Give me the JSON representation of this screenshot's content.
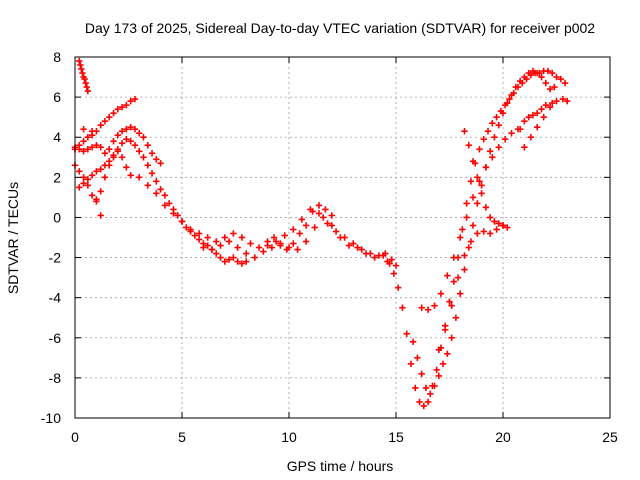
{
  "chart_data": {
    "type": "scatter",
    "title": "Day 173 of 2025, Sidereal Day-to-day VTEC variation (SDTVAR) for receiver p002",
    "xlabel": "GPS time / hours",
    "ylabel": "SDTVAR / TECUs",
    "xlim": [
      0,
      25
    ],
    "ylim": [
      -10,
      8
    ],
    "xticks": [
      0,
      5,
      10,
      15,
      20,
      25
    ],
    "yticks": [
      -10,
      -8,
      -6,
      -4,
      -2,
      0,
      2,
      4,
      6,
      8
    ],
    "grid": true,
    "marker": "+",
    "color": "#ff0000",
    "series": [
      {
        "x": [
          0.2,
          0.25,
          0.3,
          0.35,
          0.4,
          0.45,
          0.5,
          0.55,
          0.6
        ],
        "y": [
          7.8,
          7.6,
          7.4,
          7.2,
          7.0,
          6.9,
          6.7,
          6.5,
          6.3
        ]
      },
      {
        "x": [
          0.0,
          0.2,
          0.4,
          0.6,
          0.8,
          1.0,
          1.2,
          1.4,
          1.6,
          1.8,
          2.0,
          2.2,
          2.4,
          2.6,
          2.8
        ],
        "y": [
          3.4,
          3.6,
          3.8,
          4.0,
          4.1,
          4.3,
          4.6,
          4.8,
          5.0,
          5.2,
          5.4,
          5.5,
          5.6,
          5.8,
          5.9
        ]
      },
      {
        "x": [
          0.0,
          0.2,
          0.4,
          0.6,
          0.8,
          1.0,
          1.2,
          1.4,
          1.6,
          1.8,
          2.0,
          2.2,
          2.4,
          2.6,
          2.8,
          3.0,
          3.2,
          3.4,
          3.6,
          3.8,
          4.0
        ],
        "y": [
          3.5,
          3.4,
          3.3,
          3.4,
          3.5,
          3.6,
          3.5,
          3.2,
          3.4,
          3.8,
          4.1,
          4.3,
          4.4,
          4.5,
          4.4,
          4.2,
          4.0,
          3.6,
          3.2,
          2.9,
          2.7
        ]
      },
      {
        "x": [
          0.0,
          0.2,
          0.4,
          0.6,
          0.8,
          1.0,
          1.2,
          1.4,
          1.6,
          1.8,
          2.0,
          2.2,
          2.4,
          2.6
        ],
        "y": [
          2.6,
          2.3,
          2.0,
          1.6,
          1.1,
          0.9,
          1.3,
          2.0,
          2.6,
          3.0,
          3.3,
          3.0,
          2.5,
          2.1
        ]
      },
      {
        "x": [
          0.2,
          0.4,
          0.6,
          0.8,
          1.0,
          1.2,
          1.4,
          1.6,
          1.8,
          2.0,
          2.2,
          2.4,
          2.6,
          2.8,
          3.0,
          3.2,
          3.4,
          3.6,
          3.8,
          4.0,
          4.2,
          4.4,
          4.6,
          4.8,
          5.0,
          5.2,
          5.4,
          5.6,
          5.8,
          6.0,
          6.2,
          6.4,
          6.6,
          6.8,
          7.0,
          7.2,
          7.4,
          7.6,
          7.8,
          8.0
        ],
        "y": [
          1.5,
          1.7,
          1.9,
          2.1,
          2.3,
          2.4,
          2.6,
          2.8,
          3.1,
          3.4,
          3.7,
          3.9,
          3.8,
          3.6,
          3.3,
          3.0,
          2.6,
          2.2,
          1.8,
          1.4,
          1.1,
          0.7,
          0.4,
          0.1,
          -0.2,
          -0.5,
          -0.7,
          -0.9,
          -1.1,
          -1.3,
          -1.4,
          -1.6,
          -1.8,
          -2.0,
          -2.2,
          -2.1,
          -2.0,
          -2.2,
          -2.3,
          -2.2
        ]
      },
      {
        "x": [
          0.4,
          0.8,
          1.0,
          1.2
        ],
        "y": [
          4.4,
          4.3,
          0.8,
          0.1
        ]
      },
      {
        "x": [
          3.0,
          3.4,
          3.8,
          4.2,
          4.6,
          5.0,
          5.4,
          5.8,
          6.2,
          6.6,
          7.0,
          7.4,
          7.8,
          8.2,
          8.6,
          9.0,
          9.4,
          9.8,
          10.2,
          10.6,
          11.0,
          11.4,
          11.8,
          12.2,
          12.6,
          13.0,
          13.4,
          13.8,
          14.2,
          14.6,
          15.0
        ],
        "y": [
          2.0,
          1.6,
          1.2,
          0.6,
          0.2,
          -0.2,
          -0.6,
          -0.8,
          -1.0,
          -1.2,
          -1.0,
          -0.8,
          -1.0,
          -1.3,
          -1.5,
          -1.4,
          -1.2,
          -0.9,
          -0.6,
          -0.1,
          0.4,
          0.2,
          -0.3,
          -0.7,
          -1.0,
          -1.3,
          -1.6,
          -1.8,
          -1.9,
          -2.2,
          -2.4
        ]
      },
      {
        "x": [
          6.0,
          6.4,
          6.8,
          7.2,
          7.6,
          8.0,
          8.4,
          8.8,
          9.2,
          9.6,
          10.0,
          10.4,
          10.8,
          11.2,
          11.6,
          12.0,
          12.4,
          12.8,
          13.2,
          13.6,
          14.0,
          14.4,
          14.8
        ],
        "y": [
          -1.5,
          -1.6,
          -1.4,
          -1.2,
          -1.5,
          -1.8,
          -2.0,
          -1.7,
          -1.5,
          -1.3,
          -1.5,
          -1.6,
          -1.2,
          -0.5,
          0.0,
          -0.4,
          -1.0,
          -1.4,
          -1.5,
          -1.8,
          -2.0,
          -1.9,
          -2.1
        ]
      },
      {
        "x": [
          9.0,
          9.3,
          9.6,
          9.9,
          10.2,
          10.5,
          10.8,
          11.1,
          11.4,
          11.7,
          12.0
        ],
        "y": [
          -1.2,
          -1.0,
          -1.4,
          -1.6,
          -1.3,
          -0.8,
          -0.4,
          0.3,
          0.6,
          0.4,
          0.1
        ]
      },
      {
        "x": [
          14.5,
          14.7,
          14.9,
          15.1,
          15.3,
          15.5,
          15.7,
          15.9,
          16.1,
          16.3,
          16.5,
          16.7,
          16.9,
          17.1,
          17.3,
          17.5,
          17.7,
          17.9,
          18.1,
          18.3,
          18.5,
          18.7,
          18.9,
          19.1,
          19.3,
          19.5,
          19.7,
          19.9,
          20.1,
          20.3,
          20.5,
          20.7,
          20.9,
          21.1,
          21.3,
          21.5,
          21.7,
          21.9,
          22.1,
          22.3,
          22.5,
          22.7,
          22.9
        ],
        "y": [
          -1.8,
          -2.3,
          -2.8,
          -3.5,
          -4.5,
          -5.8,
          -7.3,
          -8.5,
          -9.2,
          -9.4,
          -9.2,
          -8.4,
          -7.6,
          -6.5,
          -5.4,
          -4.2,
          -3.2,
          -2.0,
          -0.6,
          0.7,
          1.8,
          2.7,
          3.4,
          3.9,
          4.3,
          4.7,
          5.0,
          5.3,
          5.6,
          5.9,
          6.2,
          6.5,
          6.7,
          6.9,
          7.1,
          7.2,
          7.2,
          7.3,
          7.3,
          7.2,
          7.0,
          6.9,
          6.7
        ]
      },
      {
        "x": [
          15.8,
          16.0,
          16.2,
          16.4,
          16.6,
          16.8,
          17.0,
          17.2,
          17.4,
          17.6,
          17.8,
          18.0,
          18.2,
          18.4,
          18.6,
          18.8,
          19.0,
          19.2,
          19.4,
          19.6,
          19.8,
          20.0,
          20.2,
          20.4,
          20.6,
          20.8,
          21.0,
          21.2,
          21.4,
          21.6,
          21.8,
          22.0,
          22.2,
          22.4
        ],
        "y": [
          -6.2,
          -7.0,
          -7.8,
          -8.5,
          -8.8,
          -8.4,
          -7.9,
          -7.3,
          -6.8,
          -6.0,
          -5.0,
          -3.8,
          -2.6,
          -1.5,
          -0.4,
          0.7,
          1.6,
          2.5,
          3.3,
          4.0,
          4.6,
          5.2,
          5.7,
          6.1,
          6.5,
          6.8,
          7.0,
          7.2,
          7.3,
          7.2,
          7.0,
          6.7,
          6.4,
          6.5
        ]
      },
      {
        "x": [
          16.2,
          16.5,
          16.8,
          17.1,
          17.4,
          17.7,
          18.0,
          18.3,
          18.6,
          18.9,
          19.2,
          19.5,
          19.8,
          20.1,
          20.4,
          20.7
        ],
        "y": [
          -4.5,
          -4.6,
          -4.4,
          -3.8,
          -2.9,
          -2.0,
          -1.0,
          0.0,
          1.0,
          1.8,
          2.5,
          3.0,
          3.5,
          3.9,
          4.2,
          4.4
        ]
      },
      {
        "x": [
          17.0,
          17.3,
          17.6,
          17.9,
          18.2,
          18.5,
          18.8,
          19.1,
          19.4,
          19.7,
          20.0
        ],
        "y": [
          -6.6,
          -5.6,
          -4.4,
          -3.0,
          -1.9,
          -1.2,
          -0.8,
          -0.7,
          -0.8,
          -0.6,
          -0.4
        ]
      },
      {
        "x": [
          18.2,
          18.4,
          18.6,
          18.8,
          19.0,
          19.2,
          19.4,
          19.6,
          19.8,
          20.0,
          20.2
        ],
        "y": [
          4.3,
          3.6,
          2.8,
          2.0,
          1.2,
          0.5,
          0.0,
          -0.2,
          -0.3,
          -0.4,
          -0.5
        ]
      },
      {
        "x": [
          21.0,
          21.3,
          21.6,
          21.9,
          22.2,
          22.5,
          22.8,
          23.0
        ],
        "y": [
          3.5,
          4.0,
          4.5,
          5.0,
          5.5,
          5.8,
          5.9,
          5.8
        ]
      },
      {
        "x": [
          20.8,
          21.0,
          21.2,
          21.4,
          21.6,
          21.8,
          22.0,
          22.3
        ],
        "y": [
          4.4,
          4.8,
          5.0,
          5.1,
          5.2,
          5.4,
          5.6,
          5.7
        ]
      }
    ]
  }
}
